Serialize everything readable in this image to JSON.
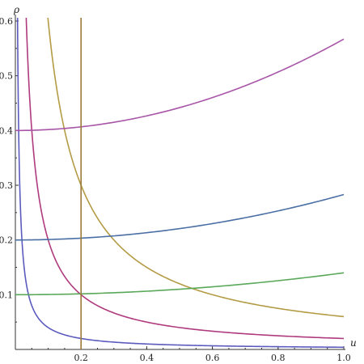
{
  "chart_data": {
    "type": "line",
    "xlabel": "u",
    "ylabel": "ρ",
    "xlim": [
      0,
      1.0
    ],
    "ylim": [
      0,
      0.6
    ],
    "x_ticks": [
      "0.2",
      "0.4",
      "0.6",
      "0.8",
      "1.0"
    ],
    "y_ticks": [
      "0.1",
      "0.2",
      "0.3",
      "0.4",
      "0.5",
      "0.6"
    ],
    "grid": false,
    "series": [
      {
        "kind": "hyperbola",
        "k": 0.004,
        "color": "#5b5bbf"
      },
      {
        "kind": "hyperbola",
        "k": 0.02,
        "color": "#b03a7e"
      },
      {
        "kind": "hyperbola",
        "k": 0.06,
        "color": "#b49b45"
      },
      {
        "kind": "rising",
        "base": 0.1,
        "end": 0.14,
        "color": "#5aa85a"
      },
      {
        "kind": "rising",
        "base": 0.2,
        "end": 0.283,
        "color": "#4a6fa5"
      },
      {
        "kind": "rising",
        "base": 0.4,
        "end": 0.567,
        "color": "#a855a8"
      },
      {
        "kind": "vertical",
        "x": 0.2,
        "color": "#9a7a3a"
      }
    ]
  }
}
